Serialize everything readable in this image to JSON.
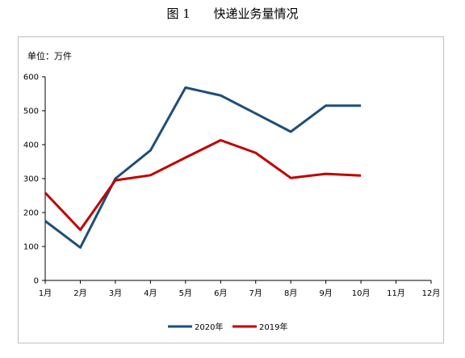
{
  "figure": {
    "title": "图 1      快递业务量情况"
  },
  "chart_data": {
    "type": "line",
    "unit_label": "单位：万件",
    "categories": [
      "1月",
      "2月",
      "3月",
      "4月",
      "5月",
      "6月",
      "7月",
      "8月",
      "9月",
      "10月",
      "11月",
      "12月"
    ],
    "ylim": [
      0,
      600
    ],
    "yticks": [
      0,
      100,
      200,
      300,
      400,
      500,
      600
    ],
    "grid": false,
    "legend_position": "bottom",
    "series": [
      {
        "name": "2020年",
        "color": "#1f4e79",
        "values": [
          175,
          97,
          300,
          383,
          568,
          545,
          492,
          438,
          515,
          515,
          null,
          null
        ]
      },
      {
        "name": "2019年",
        "color": "#c00000",
        "values": [
          258,
          149,
          295,
          310,
          362,
          413,
          376,
          302,
          314,
          309,
          null,
          null
        ]
      }
    ]
  }
}
